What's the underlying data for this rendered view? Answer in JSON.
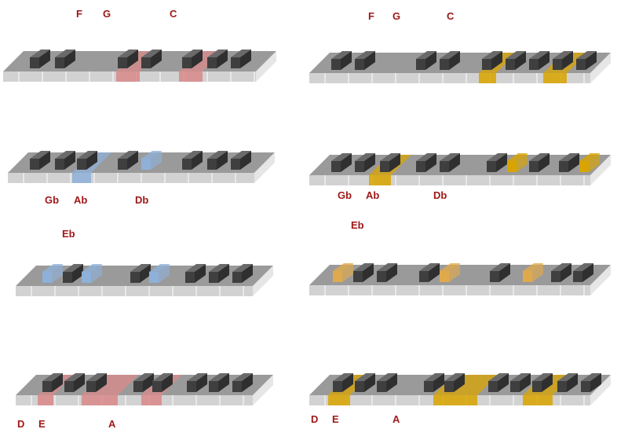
{
  "colors": {
    "red_highlight": "#d98a8a",
    "blue_highlight": "#8fb0d8",
    "light_blue_highlight": "#a9d0e0",
    "gold_highlight": "#d9a400",
    "tan_highlight": "#e0aa4c",
    "label_red": "#a01818",
    "keyboard_top": "#9a9a9a",
    "keyboard_front": "#d2d2d2",
    "black_key": "#555555"
  },
  "panels": [
    {
      "side": "left",
      "row": 1,
      "highlight_color": "red",
      "labels": [
        "F",
        "G",
        "C"
      ]
    },
    {
      "side": "right",
      "row": 1,
      "highlight_color": "gold",
      "labels": [
        "F",
        "G",
        "C"
      ]
    },
    {
      "side": "left",
      "row": 2,
      "highlight_color": "blue",
      "labels": [
        "Gb",
        "Ab",
        "Db"
      ]
    },
    {
      "side": "right",
      "row": 2,
      "highlight_color": "gold",
      "labels": [
        "Gb",
        "Ab",
        "Db"
      ]
    },
    {
      "side": "left",
      "row": 3,
      "highlight_color": "blue",
      "labels": [
        "Eb"
      ]
    },
    {
      "side": "right",
      "row": 3,
      "highlight_color": "tan",
      "labels": [
        "Eb"
      ]
    },
    {
      "side": "left",
      "row": 4,
      "highlight_color": "red",
      "labels": [
        "D",
        "E",
        "A"
      ]
    },
    {
      "side": "right",
      "row": 4,
      "highlight_color": "gold",
      "labels": [
        "D",
        "E",
        "A"
      ]
    }
  ]
}
